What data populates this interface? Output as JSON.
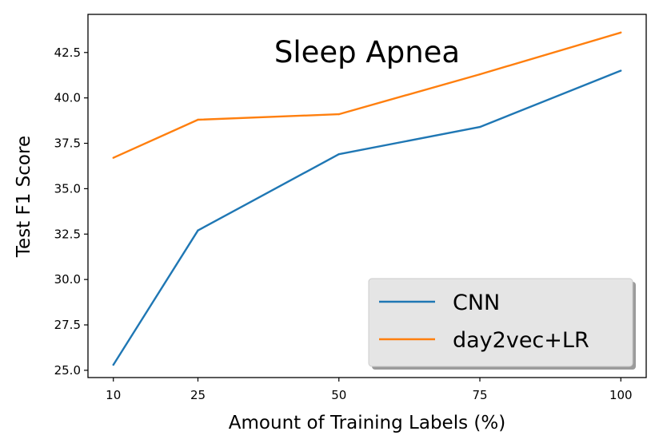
{
  "chart_data": {
    "type": "line",
    "title": "Sleep Apnea",
    "xlabel": "Amount of Training Labels (%)",
    "ylabel": "Test F1 Score",
    "x": [
      10,
      25,
      50,
      75,
      100
    ],
    "x_tick_labels": [
      "10",
      "25",
      "50",
      "75",
      "100"
    ],
    "y_ticks": [
      25.0,
      27.5,
      30.0,
      32.5,
      35.0,
      37.5,
      40.0,
      42.5
    ],
    "y_tick_labels": [
      "25.0",
      "27.5",
      "30.0",
      "32.5",
      "35.0",
      "37.5",
      "40.0",
      "42.5"
    ],
    "xlim": [
      5.5,
      104.5
    ],
    "ylim": [
      24.6,
      44.6
    ],
    "grid": false,
    "legend_position": "lower-right",
    "series": [
      {
        "name": "CNN",
        "color": "#1f77b4",
        "values": [
          25.3,
          32.7,
          36.9,
          38.4,
          41.5
        ]
      },
      {
        "name": "day2vec+LR",
        "color": "#ff7f0e",
        "values": [
          36.7,
          38.8,
          39.1,
          41.3,
          43.6
        ]
      }
    ]
  }
}
